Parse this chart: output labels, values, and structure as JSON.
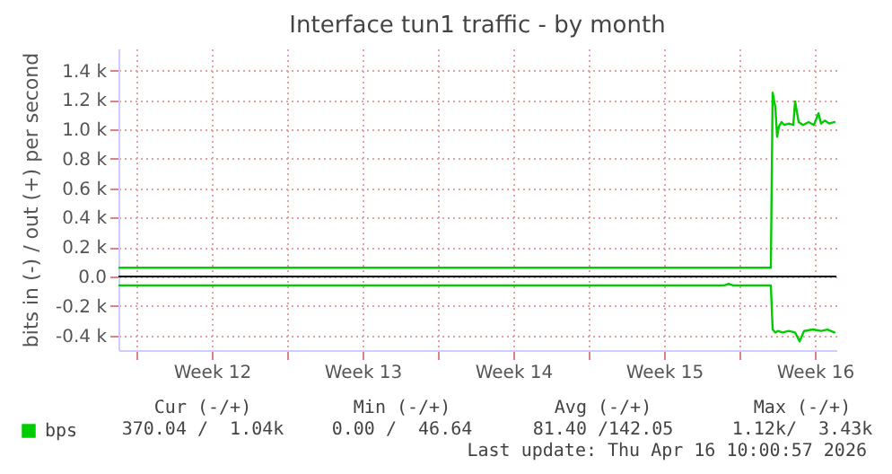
{
  "chart_data": {
    "type": "line",
    "title": "Interface tun1 traffic - by month",
    "ylabel": "bits in (-) / out (+) per second",
    "xlim": [
      "2026-03-14T04:00",
      "2026-04-16T12:00"
    ],
    "ylim": [
      -500,
      1550
    ],
    "xticks": [
      {
        "value": "2026-03-15T00:00",
        "label": null
      },
      {
        "value": "2026-03-18T12:00",
        "label": "Week 12"
      },
      {
        "value": "2026-03-22T00:00",
        "label": null
      },
      {
        "value": "2026-03-25T12:00",
        "label": "Week 13"
      },
      {
        "value": "2026-03-29T00:00",
        "label": null
      },
      {
        "value": "2026-04-01T12:00",
        "label": "Week 14"
      },
      {
        "value": "2026-04-05T00:00",
        "label": null
      },
      {
        "value": "2026-04-08T12:00",
        "label": "Week 15"
      },
      {
        "value": "2026-04-12T00:00",
        "label": null
      },
      {
        "value": "2026-04-15T12:00",
        "label": "Week 16"
      }
    ],
    "yticks": [
      {
        "value": -400,
        "label": "-0.4 k"
      },
      {
        "value": -200,
        "label": "-0.2 k"
      },
      {
        "value": 0,
        "label": "0.0"
      },
      {
        "value": 200,
        "label": "0.2 k"
      },
      {
        "value": 400,
        "label": "0.4 k"
      },
      {
        "value": 600,
        "label": "0.6 k"
      },
      {
        "value": 800,
        "label": "0.8 k"
      },
      {
        "value": 1000,
        "label": "1.0 k"
      },
      {
        "value": 1200,
        "label": "1.2 k"
      },
      {
        "value": 1400,
        "label": "1.4 k"
      }
    ],
    "grid": true,
    "legend": "bottom left",
    "marker": "none",
    "line_style": "solid",
    "series": [
      {
        "name": "bps",
        "color": "#00cc00",
        "x": [
          "2026-03-14T05:00",
          "2026-04-13T11:00",
          "2026-04-13T13:00",
          "2026-04-13T16:00",
          "2026-04-13T18:00",
          "2026-04-13T20:00",
          "2026-04-13T23:00",
          "2026-04-14T02:00",
          "2026-04-14T07:00",
          "2026-04-14T12:00",
          "2026-04-14T14:00",
          "2026-04-14T18:00",
          "2026-04-14T23:00",
          "2026-04-15T05:00",
          "2026-04-15T11:00",
          "2026-04-15T16:00",
          "2026-04-15T19:00",
          "2026-04-15T23:00",
          "2026-04-16T04:00",
          "2026-04-16T10:00"
        ],
        "values": [
          60,
          60,
          1250,
          1150,
          950,
          1020,
          1050,
          1030,
          1040,
          1030,
          1190,
          1050,
          1030,
          1050,
          1030,
          1110,
          1040,
          1060,
          1040,
          1050
        ]
      },
      {
        "color": "#00cc00",
        "x": [
          "2026-03-14T05:00",
          "2026-04-11T07:00",
          "2026-04-11T12:00",
          "2026-04-11T17:00",
          "2026-04-13T11:00",
          "2026-04-13T13:00",
          "2026-04-13T16:00",
          "2026-04-13T19:00",
          "2026-04-14T00:00",
          "2026-04-14T07:00",
          "2026-04-14T14:00",
          "2026-04-14T19:00",
          "2026-04-15T00:00",
          "2026-04-15T10:00",
          "2026-04-15T19:00",
          "2026-04-16T02:00",
          "2026-04-16T10:00"
        ],
        "values": [
          -60,
          -60,
          -50,
          -60,
          -60,
          -360,
          -380,
          -370,
          -380,
          -370,
          -380,
          -440,
          -370,
          -360,
          -370,
          -360,
          -380
        ]
      }
    ],
    "ref_lines": [
      {
        "axis": "y",
        "value": 0,
        "color": "#000000"
      }
    ],
    "annotations": [
      "Cur (-/+)",
      "Min (-/+)",
      "Avg (-/+)",
      "Max (-/+)",
      "370.04 /  1.04k",
      "0.00 /  46.64",
      "81.40 /142.05",
      "1.12k/  3.43k",
      "Last update: Thu Apr 16 10:00:57 2026"
    ]
  }
}
